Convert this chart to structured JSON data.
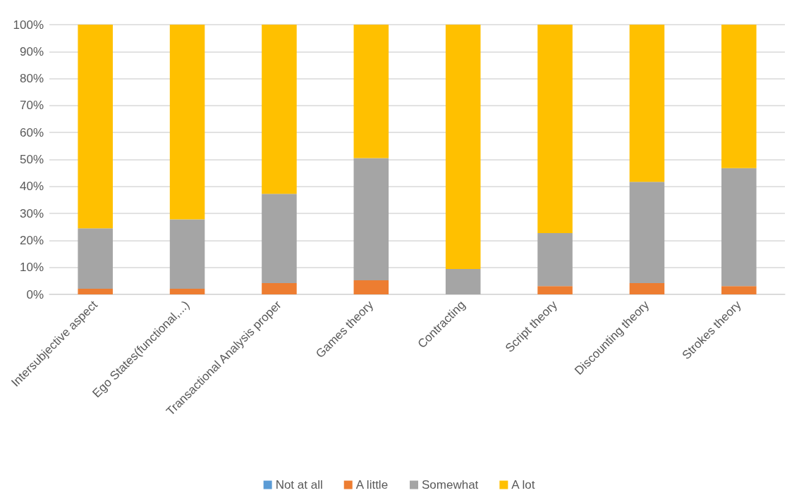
{
  "chart_data": {
    "type": "bar",
    "stacked": true,
    "categories": [
      "Intersubjective aspect",
      "Ego States(functional,...)",
      "Transactional Analysis proper",
      "Games theory",
      "Contracting",
      "Script theory",
      "Discounting theory",
      "Strokes theory"
    ],
    "series": [
      {
        "name": "Not at all",
        "color": "#5b9bd5",
        "values": [
          0,
          0,
          0,
          0,
          0,
          0,
          0,
          0
        ]
      },
      {
        "name": "A little",
        "color": "#ed7d31",
        "values": [
          2.1,
          2.1,
          4.2,
          5.2,
          0,
          3.1,
          4.2,
          3.1
        ]
      },
      {
        "name": "Somewhat",
        "color": "#a5a5a5",
        "values": [
          22.4,
          25.7,
          33.1,
          45.3,
          9.4,
          19.6,
          37.5,
          43.7
        ]
      },
      {
        "name": "A lot",
        "color": "#ffc000",
        "values": [
          75.5,
          72.2,
          62.7,
          49.5,
          90.6,
          77.3,
          58.3,
          53.2
        ]
      }
    ],
    "ylim": [
      0,
      100
    ],
    "yticks": [
      {
        "value": 0,
        "label": "0%"
      },
      {
        "value": 10,
        "label": "10%"
      },
      {
        "value": 20,
        "label": "20%"
      },
      {
        "value": 30,
        "label": "30%"
      },
      {
        "value": 40,
        "label": "40%"
      },
      {
        "value": 50,
        "label": "50%"
      },
      {
        "value": 60,
        "label": "60%"
      },
      {
        "value": 70,
        "label": "70%"
      },
      {
        "value": 80,
        "label": "80%"
      },
      {
        "value": 90,
        "label": "90%"
      },
      {
        "value": 100,
        "label": "100%"
      }
    ],
    "grid": "y",
    "legend": "bottom"
  }
}
